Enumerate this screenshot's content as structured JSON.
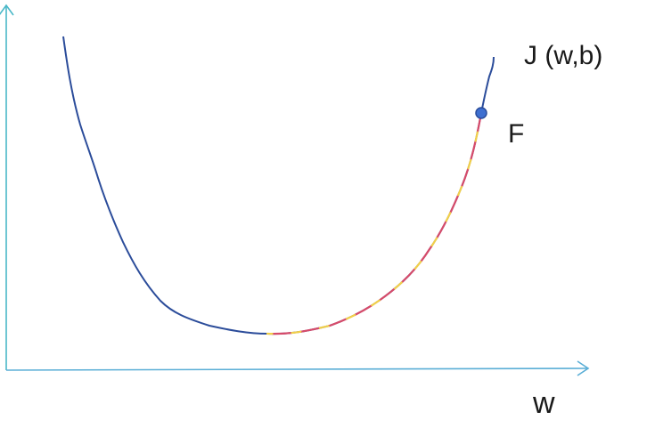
{
  "diagram": {
    "curve_label": "J (w,b)",
    "point_label": "F",
    "x_axis_label": "w",
    "colors": {
      "axis": "#5aaed6",
      "axis_vertical": "#4ab8c8",
      "curve": "#2b4c9a",
      "path_red": "#d64b6a",
      "path_yellow": "#f2d04a",
      "point_fill": "#3e6fd0",
      "point_stroke": "#2a4c9a"
    }
  }
}
